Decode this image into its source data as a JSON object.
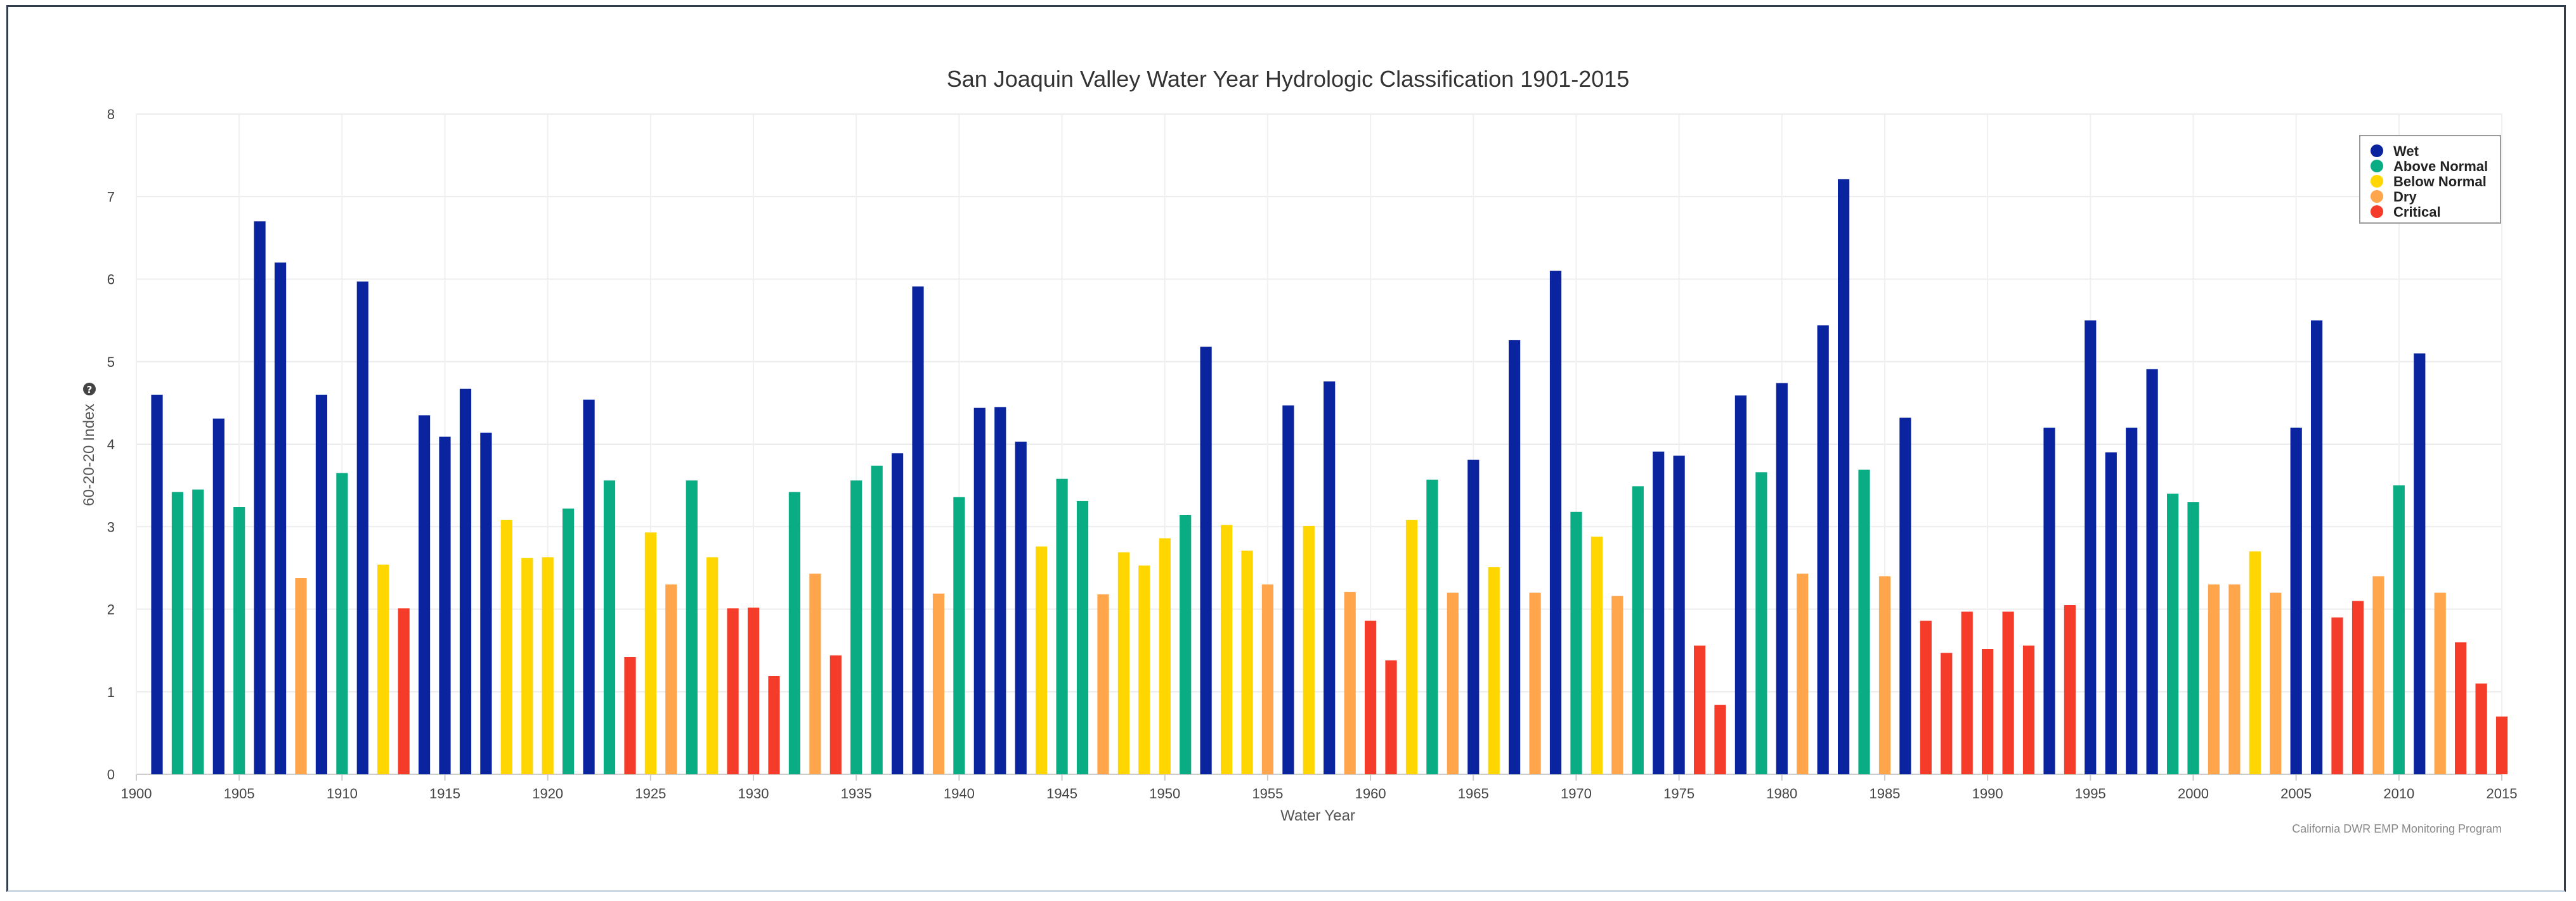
{
  "chart_data": {
    "type": "bar",
    "title": "San Joaquin Valley Water Year Hydrologic Classification 1901-2015",
    "xlabel": "Water Year",
    "ylabel": "60-20-20 Index",
    "ylabel_icon": "question-circle-icon",
    "credit": "California DWR EMP Monitoring Program",
    "ylim": [
      0,
      8
    ],
    "yticks": [
      "0",
      "1",
      "2",
      "3",
      "4",
      "5",
      "6",
      "7",
      "8"
    ],
    "xlim": [
      1900,
      2015
    ],
    "xticks": [
      "1900",
      "1905",
      "1910",
      "1915",
      "1920",
      "1925",
      "1930",
      "1935",
      "1940",
      "1945",
      "1950",
      "1955",
      "1960",
      "1965",
      "1970",
      "1975",
      "1980",
      "1985",
      "1990",
      "1995",
      "2000",
      "2005",
      "2010",
      "2015"
    ],
    "grid": true,
    "legend_position": "top-right",
    "classes": [
      {
        "key": "W",
        "name": "Wet",
        "color": "#0a24a0"
      },
      {
        "key": "AN",
        "name": "Above Normal",
        "color": "#0aac84"
      },
      {
        "key": "BN",
        "name": "Below Normal",
        "color": "#ffd600"
      },
      {
        "key": "D",
        "name": "Dry",
        "color": "#ffa64d"
      },
      {
        "key": "C",
        "name": "Critical",
        "color": "#f53b2a"
      }
    ],
    "points": [
      {
        "year": 1901,
        "value": 4.6,
        "class": "W"
      },
      {
        "year": 1902,
        "value": 3.42,
        "class": "AN"
      },
      {
        "year": 1903,
        "value": 3.45,
        "class": "AN"
      },
      {
        "year": 1904,
        "value": 4.31,
        "class": "W"
      },
      {
        "year": 1905,
        "value": 3.24,
        "class": "AN"
      },
      {
        "year": 1906,
        "value": 6.7,
        "class": "W"
      },
      {
        "year": 1907,
        "value": 6.2,
        "class": "W"
      },
      {
        "year": 1908,
        "value": 2.38,
        "class": "D"
      },
      {
        "year": 1909,
        "value": 4.6,
        "class": "W"
      },
      {
        "year": 1910,
        "value": 3.65,
        "class": "AN"
      },
      {
        "year": 1911,
        "value": 5.97,
        "class": "W"
      },
      {
        "year": 1912,
        "value": 2.54,
        "class": "BN"
      },
      {
        "year": 1913,
        "value": 2.01,
        "class": "C"
      },
      {
        "year": 1914,
        "value": 4.35,
        "class": "W"
      },
      {
        "year": 1915,
        "value": 4.09,
        "class": "W"
      },
      {
        "year": 1916,
        "value": 4.67,
        "class": "W"
      },
      {
        "year": 1917,
        "value": 4.14,
        "class": "W"
      },
      {
        "year": 1918,
        "value": 3.08,
        "class": "BN"
      },
      {
        "year": 1919,
        "value": 2.62,
        "class": "BN"
      },
      {
        "year": 1920,
        "value": 2.63,
        "class": "BN"
      },
      {
        "year": 1921,
        "value": 3.22,
        "class": "AN"
      },
      {
        "year": 1922,
        "value": 4.54,
        "class": "W"
      },
      {
        "year": 1923,
        "value": 3.56,
        "class": "AN"
      },
      {
        "year": 1924,
        "value": 1.42,
        "class": "C"
      },
      {
        "year": 1925,
        "value": 2.93,
        "class": "BN"
      },
      {
        "year": 1926,
        "value": 2.3,
        "class": "D"
      },
      {
        "year": 1927,
        "value": 3.56,
        "class": "AN"
      },
      {
        "year": 1928,
        "value": 2.63,
        "class": "BN"
      },
      {
        "year": 1929,
        "value": 2.01,
        "class": "C"
      },
      {
        "year": 1930,
        "value": 2.02,
        "class": "C"
      },
      {
        "year": 1931,
        "value": 1.19,
        "class": "C"
      },
      {
        "year": 1932,
        "value": 3.42,
        "class": "AN"
      },
      {
        "year": 1933,
        "value": 2.43,
        "class": "D"
      },
      {
        "year": 1934,
        "value": 1.44,
        "class": "C"
      },
      {
        "year": 1935,
        "value": 3.56,
        "class": "AN"
      },
      {
        "year": 1936,
        "value": 3.74,
        "class": "AN"
      },
      {
        "year": 1937,
        "value": 3.89,
        "class": "W"
      },
      {
        "year": 1938,
        "value": 5.91,
        "class": "W"
      },
      {
        "year": 1939,
        "value": 2.19,
        "class": "D"
      },
      {
        "year": 1940,
        "value": 3.36,
        "class": "AN"
      },
      {
        "year": 1941,
        "value": 4.44,
        "class": "W"
      },
      {
        "year": 1942,
        "value": 4.45,
        "class": "W"
      },
      {
        "year": 1943,
        "value": 4.03,
        "class": "W"
      },
      {
        "year": 1944,
        "value": 2.76,
        "class": "BN"
      },
      {
        "year": 1945,
        "value": 3.58,
        "class": "AN"
      },
      {
        "year": 1946,
        "value": 3.31,
        "class": "AN"
      },
      {
        "year": 1947,
        "value": 2.18,
        "class": "D"
      },
      {
        "year": 1948,
        "value": 2.69,
        "class": "BN"
      },
      {
        "year": 1949,
        "value": 2.53,
        "class": "BN"
      },
      {
        "year": 1950,
        "value": 2.86,
        "class": "BN"
      },
      {
        "year": 1951,
        "value": 3.14,
        "class": "AN"
      },
      {
        "year": 1952,
        "value": 5.18,
        "class": "W"
      },
      {
        "year": 1953,
        "value": 3.02,
        "class": "BN"
      },
      {
        "year": 1954,
        "value": 2.71,
        "class": "BN"
      },
      {
        "year": 1955,
        "value": 2.3,
        "class": "D"
      },
      {
        "year": 1956,
        "value": 4.47,
        "class": "W"
      },
      {
        "year": 1957,
        "value": 3.01,
        "class": "BN"
      },
      {
        "year": 1958,
        "value": 4.76,
        "class": "W"
      },
      {
        "year": 1959,
        "value": 2.21,
        "class": "D"
      },
      {
        "year": 1960,
        "value": 1.86,
        "class": "C"
      },
      {
        "year": 1961,
        "value": 1.38,
        "class": "C"
      },
      {
        "year": 1962,
        "value": 3.08,
        "class": "BN"
      },
      {
        "year": 1963,
        "value": 3.57,
        "class": "AN"
      },
      {
        "year": 1964,
        "value": 2.2,
        "class": "D"
      },
      {
        "year": 1965,
        "value": 3.81,
        "class": "W"
      },
      {
        "year": 1966,
        "value": 2.51,
        "class": "BN"
      },
      {
        "year": 1967,
        "value": 5.26,
        "class": "W"
      },
      {
        "year": 1968,
        "value": 2.2,
        "class": "D"
      },
      {
        "year": 1969,
        "value": 6.1,
        "class": "W"
      },
      {
        "year": 1970,
        "value": 3.18,
        "class": "AN"
      },
      {
        "year": 1971,
        "value": 2.88,
        "class": "BN"
      },
      {
        "year": 1972,
        "value": 2.16,
        "class": "D"
      },
      {
        "year": 1973,
        "value": 3.49,
        "class": "AN"
      },
      {
        "year": 1974,
        "value": 3.91,
        "class": "W"
      },
      {
        "year": 1975,
        "value": 3.86,
        "class": "W"
      },
      {
        "year": 1976,
        "value": 1.56,
        "class": "C"
      },
      {
        "year": 1977,
        "value": 0.84,
        "class": "C"
      },
      {
        "year": 1978,
        "value": 4.59,
        "class": "W"
      },
      {
        "year": 1979,
        "value": 3.66,
        "class": "AN"
      },
      {
        "year": 1980,
        "value": 4.74,
        "class": "W"
      },
      {
        "year": 1981,
        "value": 2.43,
        "class": "D"
      },
      {
        "year": 1982,
        "value": 5.44,
        "class": "W"
      },
      {
        "year": 1983,
        "value": 7.21,
        "class": "W"
      },
      {
        "year": 1984,
        "value": 3.69,
        "class": "AN"
      },
      {
        "year": 1985,
        "value": 2.4,
        "class": "D"
      },
      {
        "year": 1986,
        "value": 4.32,
        "class": "W"
      },
      {
        "year": 1987,
        "value": 1.86,
        "class": "C"
      },
      {
        "year": 1988,
        "value": 1.47,
        "class": "C"
      },
      {
        "year": 1989,
        "value": 1.97,
        "class": "C"
      },
      {
        "year": 1990,
        "value": 1.52,
        "class": "C"
      },
      {
        "year": 1991,
        "value": 1.97,
        "class": "C"
      },
      {
        "year": 1992,
        "value": 1.56,
        "class": "C"
      },
      {
        "year": 1993,
        "value": 4.2,
        "class": "W"
      },
      {
        "year": 1994,
        "value": 2.05,
        "class": "C"
      },
      {
        "year": 1995,
        "value": 5.5,
        "class": "W"
      },
      {
        "year": 1996,
        "value": 3.9,
        "class": "W"
      },
      {
        "year": 1997,
        "value": 4.2,
        "class": "W"
      },
      {
        "year": 1998,
        "value": 4.91,
        "class": "W"
      },
      {
        "year": 1999,
        "value": 3.4,
        "class": "AN"
      },
      {
        "year": 2000,
        "value": 3.3,
        "class": "AN"
      },
      {
        "year": 2001,
        "value": 2.3,
        "class": "D"
      },
      {
        "year": 2002,
        "value": 2.3,
        "class": "D"
      },
      {
        "year": 2003,
        "value": 2.7,
        "class": "BN"
      },
      {
        "year": 2004,
        "value": 2.2,
        "class": "D"
      },
      {
        "year": 2005,
        "value": 4.2,
        "class": "W"
      },
      {
        "year": 2006,
        "value": 5.5,
        "class": "W"
      },
      {
        "year": 2007,
        "value": 1.9,
        "class": "C"
      },
      {
        "year": 2008,
        "value": 2.1,
        "class": "C"
      },
      {
        "year": 2009,
        "value": 2.4,
        "class": "D"
      },
      {
        "year": 2010,
        "value": 3.5,
        "class": "AN"
      },
      {
        "year": 2011,
        "value": 5.1,
        "class": "W"
      },
      {
        "year": 2012,
        "value": 2.2,
        "class": "D"
      },
      {
        "year": 2013,
        "value": 1.6,
        "class": "C"
      },
      {
        "year": 2014,
        "value": 1.1,
        "class": "C"
      },
      {
        "year": 2015,
        "value": 0.7,
        "class": "C"
      }
    ]
  }
}
